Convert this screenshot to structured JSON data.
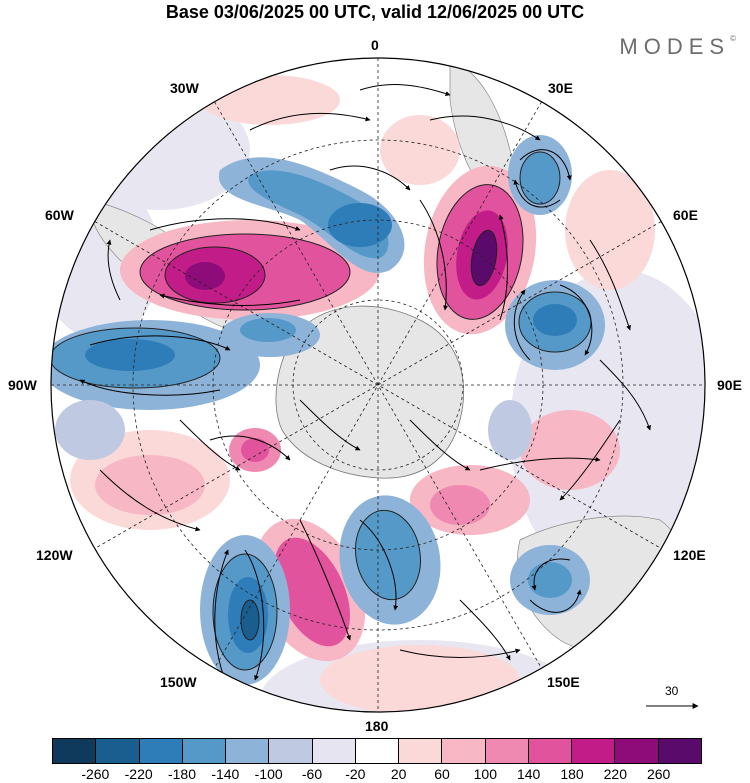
{
  "title": "Base 03/06/2025 00 UTC, valid 12/06/2025 00 UTC",
  "brand": "MODES",
  "brand_mark": "©",
  "longitude_labels": {
    "top": "0",
    "bottom": "180",
    "left": "90W",
    "right": "90E",
    "w30": "30W",
    "e30": "30E",
    "w60": "60W",
    "e60": "60E",
    "w120": "120W",
    "e120": "120E",
    "w150": "150W",
    "e150": "150E"
  },
  "reference_vector": {
    "value": "30"
  },
  "colorbar": {
    "colors": [
      "#0f3a5c",
      "#1a5d8f",
      "#2f7db8",
      "#5599c8",
      "#8eb3d9",
      "#bfcae2",
      "#e6e4f0",
      "#ffffff",
      "#fbd9d9",
      "#f7b7c4",
      "#ef89b1",
      "#e2539d",
      "#c11c87",
      "#8e0c7a",
      "#5a0a6b"
    ],
    "ticks": [
      "-260",
      "-220",
      "-180",
      "-140",
      "-100",
      "-60",
      "-20",
      "20",
      "60",
      "100",
      "140",
      "180",
      "220",
      "260"
    ]
  },
  "colors": {
    "land_gray": "#e6e6e6",
    "neg_strong": "#1a5d8f",
    "pos_strong": "#8e0c7a"
  },
  "icons": [
    "arrow-right-icon"
  ]
}
